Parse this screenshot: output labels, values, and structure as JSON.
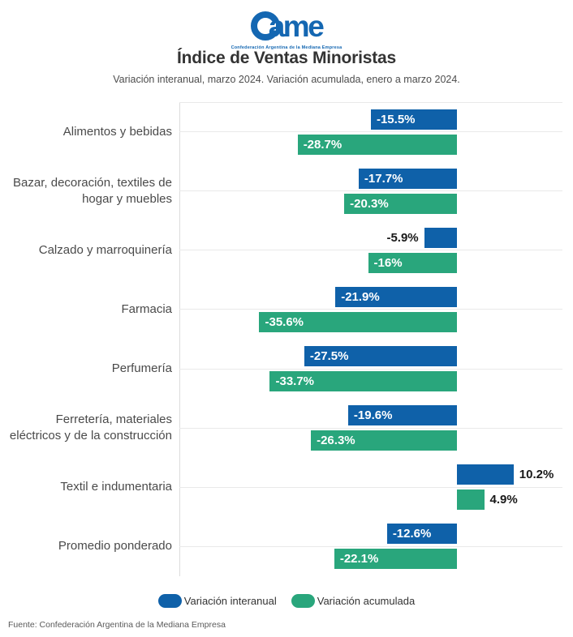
{
  "logo": {
    "wordmark_tail": "ame",
    "subtext": "Confederación Argentina de la Mediana Empresa",
    "color": "#1467b2"
  },
  "chart_data": {
    "type": "bar",
    "orientation": "horizontal",
    "title": "Índice de Ventas Minoristas",
    "subtitle": "Variación interanual, marzo 2024. Variación acumulada, enero a marzo 2024.",
    "categories": [
      [
        "Alimentos y bebidas"
      ],
      [
        "Bazar, decoración, textiles de",
        "hogar y muebles"
      ],
      [
        "Calzado y marroquinería"
      ],
      [
        "Farmacia"
      ],
      [
        "Perfumería"
      ],
      [
        "Ferretería, materiales",
        "eléctricos y de la construcción"
      ],
      [
        "Textil e indumentaria"
      ],
      [
        "Promedio ponderado"
      ]
    ],
    "series": [
      {
        "name": "Variación interanual",
        "color": "#0f61a9",
        "values": [
          -15.5,
          -17.7,
          -5.9,
          -21.9,
          -27.5,
          -19.6,
          10.2,
          -12.6
        ],
        "labels": [
          "-15.5%",
          "-17.7%",
          "-5.9%",
          "-21.9%",
          "-27.5%",
          "-19.6%",
          "10.2%",
          "-12.6%"
        ]
      },
      {
        "name": "Variación acumulada",
        "color": "#29a67c",
        "values": [
          -28.7,
          -20.3,
          -16,
          -35.6,
          -33.7,
          -26.3,
          4.9,
          -22.1
        ],
        "labels": [
          "-28.7%",
          "-20.3%",
          "-16%",
          "-35.6%",
          "-33.7%",
          "-26.3%",
          "4.9%",
          "-22.1%"
        ]
      }
    ],
    "xlim": [
      -50,
      20
    ],
    "unit": "%",
    "grid": "horizontal tick line per category, no x-axis labels",
    "legend_position": "bottom"
  },
  "footer": {
    "source": "Fuente: Confederación Argentina de la Mediana Empresa"
  }
}
